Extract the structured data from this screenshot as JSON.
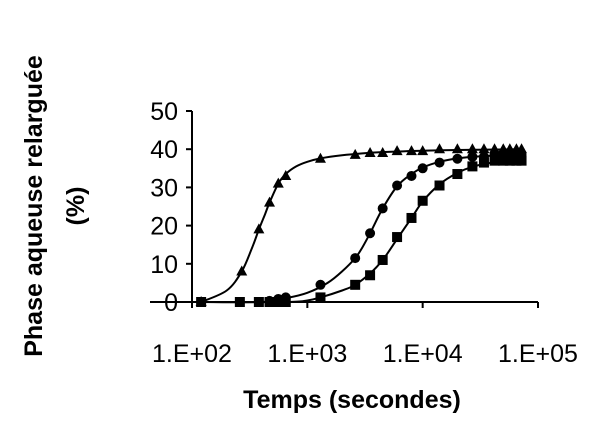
{
  "chart_data": {
    "type": "scatter",
    "title": "",
    "xlabel": "Temps (secondes)",
    "ylabel_line1": "Phase aqueuse relarguée",
    "ylabel_line2": "(%)",
    "x_scale": "log",
    "xlim": [
      100,
      100000
    ],
    "ylim": [
      0,
      50
    ],
    "x_ticks": [
      100,
      1000,
      10000,
      100000
    ],
    "x_tick_labels": [
      "1.E+02",
      "1.E+03",
      "1.E+04",
      "1.E+05"
    ],
    "y_ticks": [
      0,
      10,
      20,
      30,
      40,
      50
    ],
    "y_tick_labels": [
      "0",
      "10",
      "20",
      "30",
      "40",
      "50"
    ],
    "grid": false,
    "legend": "none",
    "series": [
      {
        "marker": "triangle",
        "points": [
          [
            120,
            0
          ],
          [
            270,
            8
          ],
          [
            380,
            19
          ],
          [
            470,
            26
          ],
          [
            560,
            31
          ],
          [
            650,
            33
          ],
          [
            1300,
            37.5
          ],
          [
            2600,
            38.5
          ],
          [
            3500,
            39
          ],
          [
            4500,
            39
          ],
          [
            6000,
            39.5
          ],
          [
            8000,
            39.5
          ],
          [
            10000,
            39.5
          ],
          [
            14000,
            40
          ],
          [
            20000,
            40
          ],
          [
            27000,
            40
          ],
          [
            34000,
            40
          ],
          [
            42000,
            40
          ],
          [
            50000,
            40
          ],
          [
            57000,
            40
          ],
          [
            65000,
            40
          ],
          [
            72000,
            40
          ]
        ],
        "curve": [
          [
            120,
            0
          ],
          [
            200,
            3
          ],
          [
            270,
            8
          ],
          [
            330,
            14
          ],
          [
            380,
            19
          ],
          [
            430,
            23
          ],
          [
            470,
            26
          ],
          [
            560,
            31
          ],
          [
            650,
            33.5
          ],
          [
            800,
            35.5
          ],
          [
            1000,
            36.7
          ],
          [
            1300,
            37.6
          ],
          [
            2000,
            38.4
          ],
          [
            3000,
            38.9
          ],
          [
            5000,
            39.3
          ],
          [
            10000,
            39.6
          ],
          [
            20000,
            39.8
          ],
          [
            72000,
            40
          ]
        ]
      },
      {
        "marker": "circle",
        "points": [
          [
            120,
            0
          ],
          [
            260,
            0
          ],
          [
            380,
            0
          ],
          [
            470,
            0.3
          ],
          [
            560,
            0.8
          ],
          [
            650,
            1.2
          ],
          [
            1300,
            4.5
          ],
          [
            2600,
            11.5
          ],
          [
            3500,
            18
          ],
          [
            4500,
            24.5
          ],
          [
            6000,
            30.5
          ],
          [
            8000,
            33
          ],
          [
            10000,
            35
          ],
          [
            14000,
            36.5
          ],
          [
            20000,
            37.5
          ],
          [
            27000,
            38
          ],
          [
            34000,
            38
          ],
          [
            42000,
            38.5
          ],
          [
            50000,
            38.5
          ],
          [
            57000,
            38.5
          ],
          [
            65000,
            38.5
          ],
          [
            72000,
            38.5
          ]
        ],
        "curve": [
          [
            120,
            0
          ],
          [
            400,
            0
          ],
          [
            650,
            1
          ],
          [
            1000,
            2.4
          ],
          [
            1500,
            5
          ],
          [
            2000,
            8
          ],
          [
            2600,
            11.5
          ],
          [
            3000,
            14.3
          ],
          [
            3500,
            18
          ],
          [
            4500,
            24.5
          ],
          [
            6000,
            30.3
          ],
          [
            8000,
            33.5
          ],
          [
            10000,
            35.2
          ],
          [
            14000,
            36.7
          ],
          [
            20000,
            37.6
          ],
          [
            30000,
            38.1
          ],
          [
            50000,
            38.4
          ],
          [
            72000,
            38.5
          ]
        ]
      },
      {
        "marker": "square",
        "points": [
          [
            120,
            0
          ],
          [
            260,
            0
          ],
          [
            380,
            0
          ],
          [
            470,
            0
          ],
          [
            560,
            0
          ],
          [
            650,
            0
          ],
          [
            1300,
            1.2
          ],
          [
            2600,
            4.5
          ],
          [
            3500,
            7
          ],
          [
            4500,
            11
          ],
          [
            6000,
            17
          ],
          [
            8000,
            22
          ],
          [
            10000,
            26.5
          ],
          [
            14000,
            30.5
          ],
          [
            20000,
            33.5
          ],
          [
            27000,
            35.5
          ],
          [
            34000,
            36.5
          ],
          [
            42000,
            37
          ],
          [
            50000,
            37
          ],
          [
            57000,
            37
          ],
          [
            65000,
            37
          ],
          [
            72000,
            37
          ]
        ],
        "curve": [
          [
            120,
            0
          ],
          [
            650,
            0
          ],
          [
            1000,
            0.4
          ],
          [
            1300,
            1.2
          ],
          [
            2000,
            3
          ],
          [
            2600,
            4.5
          ],
          [
            3500,
            7.5
          ],
          [
            4500,
            11
          ],
          [
            6000,
            16.5
          ],
          [
            8000,
            22
          ],
          [
            10000,
            26.3
          ],
          [
            14000,
            30.8
          ],
          [
            20000,
            33.8
          ],
          [
            27000,
            35.4
          ],
          [
            40000,
            36.5
          ],
          [
            72000,
            37
          ]
        ]
      }
    ]
  }
}
